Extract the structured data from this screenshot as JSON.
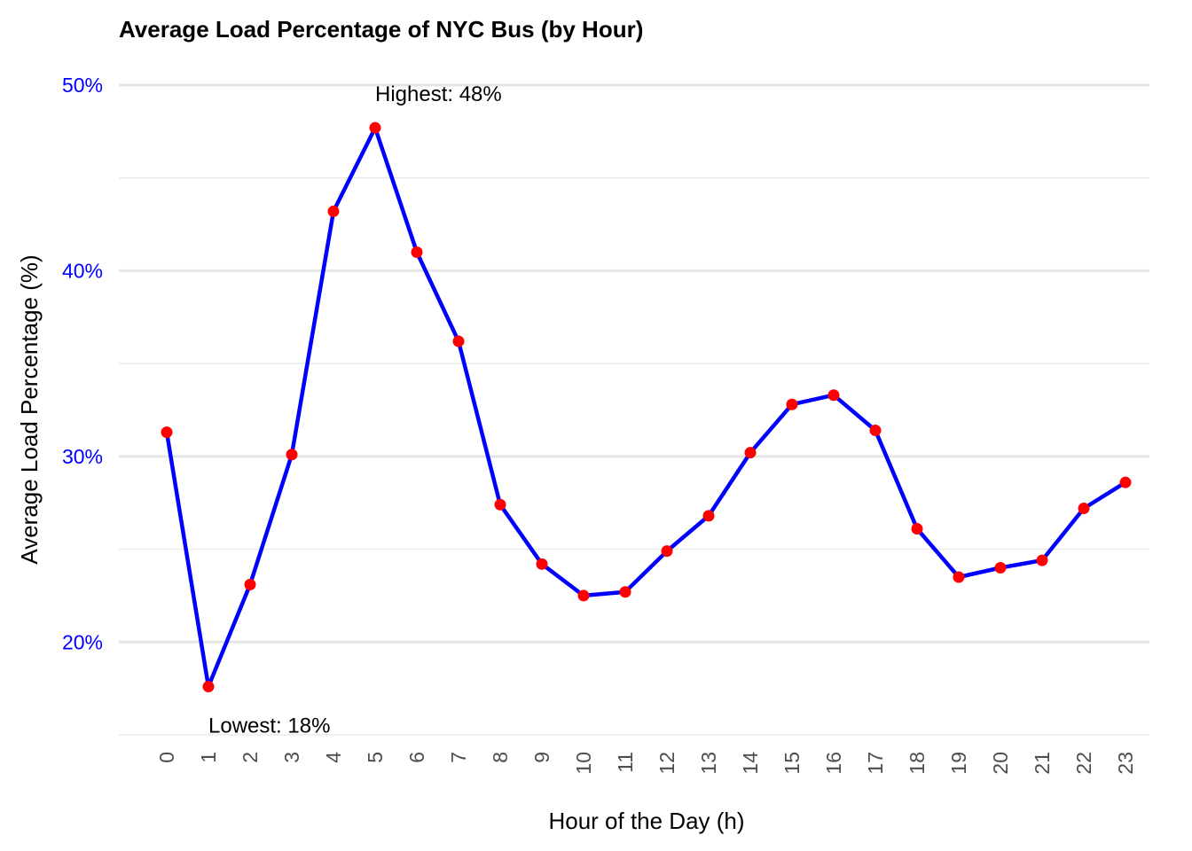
{
  "chart_data": {
    "type": "line",
    "title": "Average Load Percentage of NYC Bus (by Hour)",
    "xlabel": "Hour of the Day (h)",
    "ylabel": "Average Load Percentage (%)",
    "x": [
      0,
      1,
      2,
      3,
      4,
      5,
      6,
      7,
      8,
      9,
      10,
      11,
      12,
      13,
      14,
      15,
      16,
      17,
      18,
      19,
      20,
      21,
      22,
      23
    ],
    "x_tick_labels": [
      "0",
      "1",
      "2",
      "3",
      "4",
      "5",
      "6",
      "7",
      "8",
      "9",
      "10",
      "11",
      "12",
      "13",
      "14",
      "15",
      "16",
      "17",
      "18",
      "19",
      "20",
      "21",
      "22",
      "23"
    ],
    "series": [
      {
        "values": [
          31.3,
          17.6,
          23.1,
          30.1,
          43.2,
          47.7,
          41.0,
          36.2,
          27.4,
          24.2,
          22.5,
          22.7,
          24.9,
          26.8,
          30.2,
          32.8,
          33.3,
          31.4,
          26.1,
          23.5,
          24.0,
          24.4,
          27.2,
          28.6
        ],
        "line_color": "#0000ff",
        "point_color": "#ff0000"
      }
    ],
    "ylim": [
      15,
      50
    ],
    "y_ticks": [
      20,
      30,
      40,
      50
    ],
    "y_tick_labels": [
      "20%",
      "30%",
      "40%",
      "50%"
    ],
    "y_tick_color": "#0000ff",
    "grid": true,
    "annotations": [
      {
        "x": 5,
        "y": 47.7,
        "text": "Highest:  48%",
        "position": "above"
      },
      {
        "x": 1,
        "y": 17.6,
        "text": "Lowest:  18%",
        "position": "below"
      }
    ]
  }
}
